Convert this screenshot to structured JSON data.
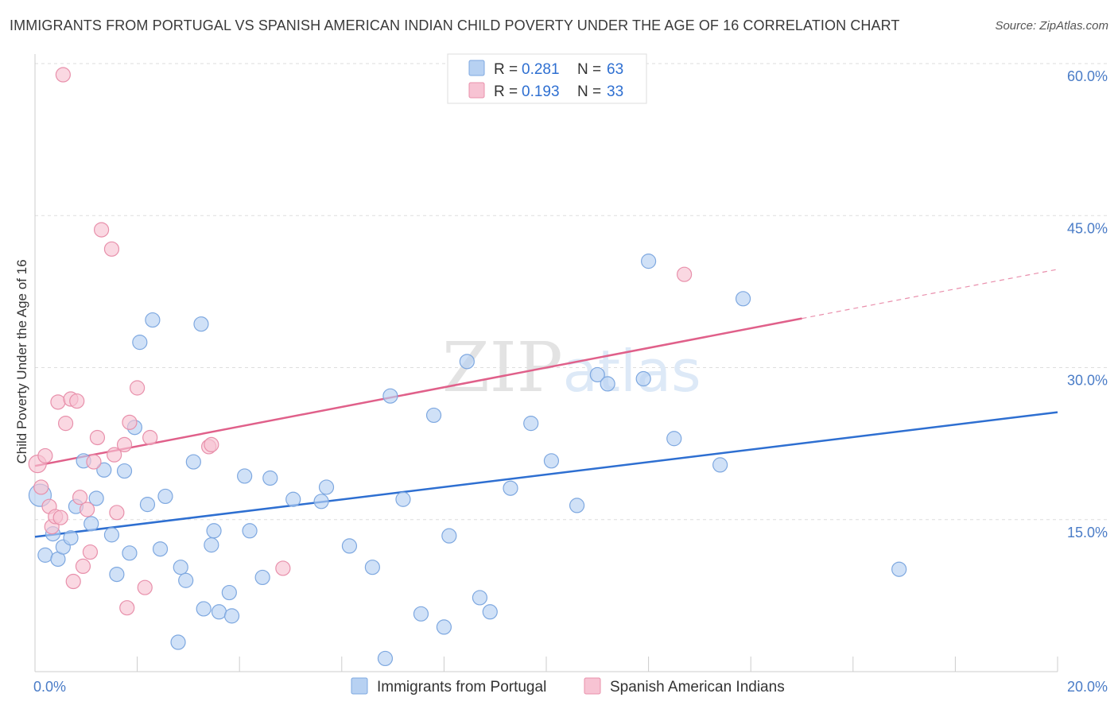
{
  "header": {
    "title": "IMMIGRANTS FROM PORTUGAL VS SPANISH AMERICAN INDIAN CHILD POVERTY UNDER THE AGE OF 16 CORRELATION CHART",
    "source": "Source: ZipAtlas.com"
  },
  "watermark": "ZIPatlas",
  "colors": {
    "blue_fill": "#b7d1f2",
    "blue_stroke": "#7ea8e0",
    "blue_line": "#2e6fd1",
    "pink_fill": "#f7c3d3",
    "pink_stroke": "#e890ab",
    "pink_line": "#e0608a",
    "grid": "#dddddd"
  },
  "legend": {
    "rows": [
      {
        "r_label": "R =",
        "r_value": "0.281",
        "n_label": "N =",
        "n_value": "63"
      },
      {
        "r_label": "R =",
        "r_value": "0.193",
        "n_label": "N =",
        "n_value": "33"
      }
    ]
  },
  "chart_data": {
    "type": "scatter",
    "title": "IMMIGRANTS FROM PORTUGAL VS SPANISH AMERICAN INDIAN CHILD POVERTY UNDER THE AGE OF 16 CORRELATION CHART",
    "xlabel": "",
    "ylabel": "Child Poverty Under the Age of 16",
    "xlim": [
      0,
      20
    ],
    "ylim": [
      0,
      60
    ],
    "x_tick_labels": [
      "0.0%",
      "20.0%"
    ],
    "y_ticks": [
      15,
      30,
      45,
      60
    ],
    "y_tick_labels": [
      "15.0%",
      "30.0%",
      "45.0%",
      "60.0%"
    ],
    "series": [
      {
        "name": "Immigrants from Portugal",
        "color": "blue",
        "trend": {
          "x0": 0,
          "y0": 13.3,
          "x1": 20,
          "y1": 25.6,
          "solid_until": 20
        },
        "points": [
          [
            0.1,
            17.4
          ],
          [
            0.2,
            11.5
          ],
          [
            0.35,
            13.6
          ],
          [
            0.45,
            11.1
          ],
          [
            0.55,
            12.3
          ],
          [
            0.7,
            13.2
          ],
          [
            0.8,
            16.3
          ],
          [
            0.95,
            20.8
          ],
          [
            1.1,
            14.6
          ],
          [
            1.2,
            17.1
          ],
          [
            1.35,
            19.9
          ],
          [
            1.5,
            13.5
          ],
          [
            1.6,
            9.6
          ],
          [
            1.75,
            19.8
          ],
          [
            1.85,
            11.7
          ],
          [
            1.95,
            24.1
          ],
          [
            2.05,
            32.5
          ],
          [
            2.2,
            16.5
          ],
          [
            2.3,
            34.7
          ],
          [
            2.45,
            12.1
          ],
          [
            2.55,
            17.3
          ],
          [
            2.8,
            2.9
          ],
          [
            2.85,
            10.3
          ],
          [
            2.95,
            9.0
          ],
          [
            3.1,
            20.7
          ],
          [
            3.25,
            34.3
          ],
          [
            3.3,
            6.2
          ],
          [
            3.45,
            12.5
          ],
          [
            3.5,
            13.9
          ],
          [
            3.6,
            5.9
          ],
          [
            3.8,
            7.8
          ],
          [
            3.85,
            5.5
          ],
          [
            4.1,
            19.3
          ],
          [
            4.2,
            13.9
          ],
          [
            4.45,
            9.3
          ],
          [
            4.6,
            19.1
          ],
          [
            5.05,
            17.0
          ],
          [
            5.6,
            16.8
          ],
          [
            5.7,
            18.2
          ],
          [
            6.15,
            12.4
          ],
          [
            6.6,
            10.3
          ],
          [
            6.85,
            1.3
          ],
          [
            6.95,
            27.2
          ],
          [
            7.2,
            17.0
          ],
          [
            7.55,
            5.7
          ],
          [
            7.8,
            25.3
          ],
          [
            8.0,
            4.4
          ],
          [
            8.1,
            13.4
          ],
          [
            8.45,
            30.6
          ],
          [
            8.7,
            7.3
          ],
          [
            8.9,
            5.9
          ],
          [
            9.3,
            18.1
          ],
          [
            9.7,
            24.5
          ],
          [
            10.1,
            20.8
          ],
          [
            10.6,
            16.4
          ],
          [
            11.0,
            29.3
          ],
          [
            11.2,
            28.4
          ],
          [
            11.9,
            28.9
          ],
          [
            12.0,
            40.5
          ],
          [
            12.5,
            23.0
          ],
          [
            13.4,
            20.4
          ],
          [
            13.85,
            36.8
          ],
          [
            16.9,
            10.1
          ]
        ]
      },
      {
        "name": "Spanish American Indians",
        "color": "pink",
        "trend": {
          "x0": 0,
          "y0": 20.3,
          "x1": 20,
          "y1": 39.7,
          "solid_until": 15
        },
        "points": [
          [
            0.05,
            20.5
          ],
          [
            0.12,
            18.2
          ],
          [
            0.2,
            21.3
          ],
          [
            0.28,
            16.3
          ],
          [
            0.33,
            14.3
          ],
          [
            0.4,
            15.3
          ],
          [
            0.45,
            26.6
          ],
          [
            0.5,
            15.2
          ],
          [
            0.55,
            58.9
          ],
          [
            0.6,
            24.5
          ],
          [
            0.7,
            26.9
          ],
          [
            0.75,
            8.9
          ],
          [
            0.82,
            26.7
          ],
          [
            0.88,
            17.2
          ],
          [
            0.94,
            10.4
          ],
          [
            1.02,
            16.0
          ],
          [
            1.08,
            11.8
          ],
          [
            1.15,
            20.7
          ],
          [
            1.22,
            23.1
          ],
          [
            1.3,
            43.6
          ],
          [
            1.5,
            41.7
          ],
          [
            1.55,
            21.4
          ],
          [
            1.6,
            15.7
          ],
          [
            1.75,
            22.4
          ],
          [
            1.8,
            6.3
          ],
          [
            1.85,
            24.6
          ],
          [
            2.0,
            28.0
          ],
          [
            2.15,
            8.3
          ],
          [
            2.25,
            23.1
          ],
          [
            3.4,
            22.2
          ],
          [
            3.45,
            22.4
          ],
          [
            4.85,
            10.2
          ],
          [
            12.7,
            39.2
          ]
        ]
      }
    ]
  },
  "bottom_legend": [
    {
      "label": "Immigrants from Portugal",
      "color": "blue"
    },
    {
      "label": "Spanish American Indians",
      "color": "pink"
    }
  ]
}
